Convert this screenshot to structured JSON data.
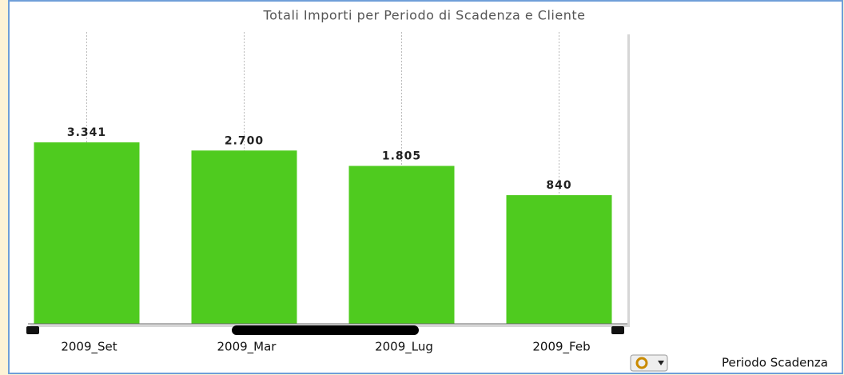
{
  "chart_data": {
    "type": "bar",
    "title": "Totali Importi per Periodo di  Scadenza e Cliente",
    "x_label": "Periodo Scadenza",
    "categories": [
      "2009_Set",
      "2009_Mar",
      "2009_Lug",
      "2009_Feb"
    ],
    "values": [
      3341,
      2700,
      1805,
      840
    ],
    "value_labels": [
      "3.341",
      "2.700",
      "1.805",
      "840"
    ],
    "color": "#4fcb1f",
    "ylim": [
      29,
      60000
    ],
    "log_scale": true,
    "grid": true
  }
}
